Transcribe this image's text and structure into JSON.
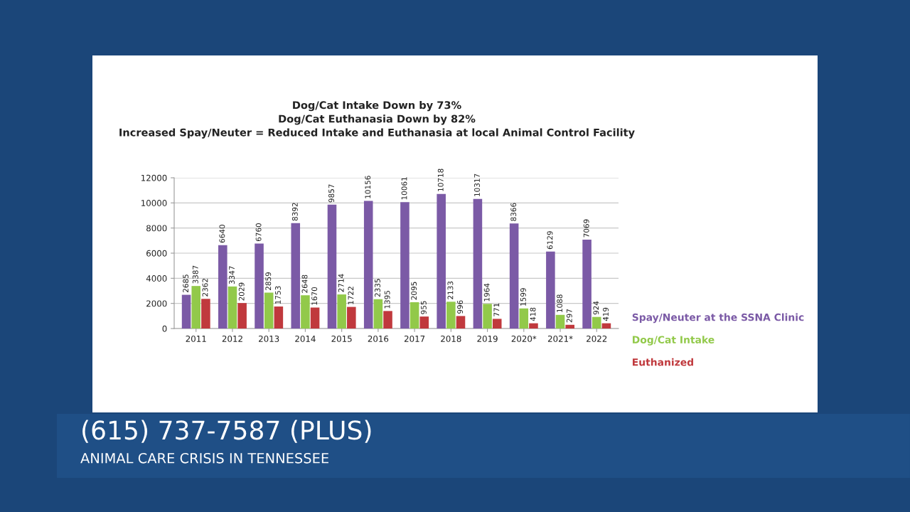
{
  "chart_data": {
    "type": "bar",
    "title": "Dog/Cat Intake Down by 73%\nDog/Cat Euthanasia Down by 82%\nIncreased Spay/Neuter = Reduced Intake and Euthanasia at local Animal Control Facility",
    "categories": [
      "2011",
      "2012",
      "2013",
      "2014",
      "2015",
      "2016",
      "2017",
      "2018",
      "2019",
      "2020*",
      "2021*",
      "2022"
    ],
    "series": [
      {
        "name": "Spay/Neuter at the SSNA Clinic",
        "color": "#7b5aa6",
        "values": [
          2685,
          6640,
          6760,
          8392,
          9857,
          10156,
          10061,
          10718,
          10317,
          8366,
          6129,
          7069
        ]
      },
      {
        "name": "Dog/Cat Intake",
        "color": "#92c94a",
        "values": [
          3387,
          3347,
          2859,
          2648,
          2714,
          2335,
          2095,
          2133,
          1964,
          1599,
          1088,
          924
        ]
      },
      {
        "name": "Euthanized",
        "color": "#c0393d",
        "values": [
          2362,
          2029,
          1753,
          1670,
          1722,
          1395,
          955,
          996,
          771,
          418,
          297,
          419
        ]
      }
    ],
    "ylim": [
      0,
      12000
    ],
    "yticks": [
      0,
      2000,
      4000,
      6000,
      8000,
      10000,
      12000
    ],
    "grid": "y",
    "legend": "right",
    "data_labels": true,
    "annotations": [
      "(615) 737-7587 (PLUS)",
      "ANIMAL CARE CRISIS IN TENNESSEE"
    ]
  }
}
